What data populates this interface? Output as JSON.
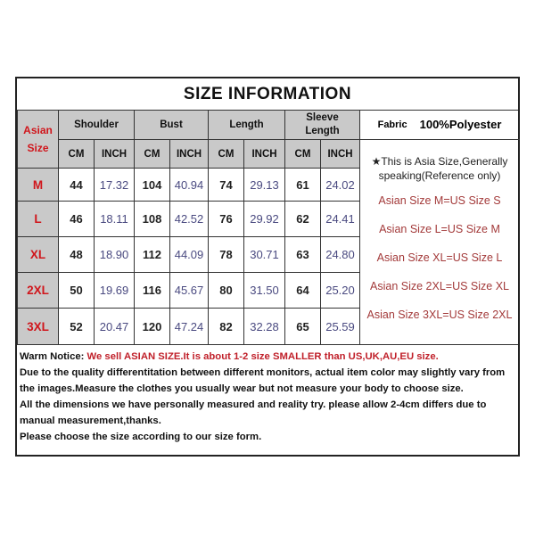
{
  "title": "SIZE INFORMATION",
  "header": {
    "asian_size": "Asian Size",
    "groups": [
      "Shoulder",
      "Bust",
      "Length",
      "Sleeve Length"
    ],
    "units": [
      "CM",
      "INCH",
      "CM",
      "INCH",
      "CM",
      "INCH",
      "CM",
      "INCH"
    ]
  },
  "rows": [
    {
      "size": "M",
      "values": [
        "44",
        "17.32",
        "104",
        "40.94",
        "74",
        "29.13",
        "61",
        "24.02"
      ]
    },
    {
      "size": "L",
      "values": [
        "46",
        "18.11",
        "108",
        "42.52",
        "76",
        "29.92",
        "62",
        "24.41"
      ]
    },
    {
      "size": "XL",
      "values": [
        "48",
        "18.90",
        "112",
        "44.09",
        "78",
        "30.71",
        "63",
        "24.80"
      ]
    },
    {
      "size": "2XL",
      "values": [
        "50",
        "19.69",
        "116",
        "45.67",
        "80",
        "31.50",
        "64",
        "25.20"
      ]
    },
    {
      "size": "3XL",
      "values": [
        "52",
        "20.47",
        "120",
        "47.24",
        "82",
        "32.28",
        "65",
        "25.59"
      ]
    }
  ],
  "fabric": {
    "label": "Fabric",
    "value": "100%Polyester"
  },
  "note": "★This is Asia Size,Generally speaking(Reference only)",
  "conversions": [
    "Asian Size M=US Size S",
    "Asian Size L=US Size M",
    "Asian Size XL=US Size L",
    "Asian Size 2XL=US Size XL",
    "Asian Size 3XL=US Size 2XL"
  ],
  "notice": {
    "label": "Warm Notice:",
    "highlight": " We sell ASIAN SIZE.It is about 1-2 size SMALLER than US,UK,AU,EU size.",
    "lines": [
      "Due to the quality differentitation between different monitors, actual item color may slightly vary from the images.Measure the clothes you usually wear but not measure your body to choose size.",
      "All the dimensions we have personally measured and reality try. please allow 2-4cm differs due to manual measurement,thanks.",
      "Please choose the size according to our size form."
    ]
  },
  "colors": {
    "header_gray": "#c9c9c9",
    "size_red": "#d0161c",
    "inch_blue": "#4a4a80",
    "conversion_red": "#a33a3a"
  }
}
